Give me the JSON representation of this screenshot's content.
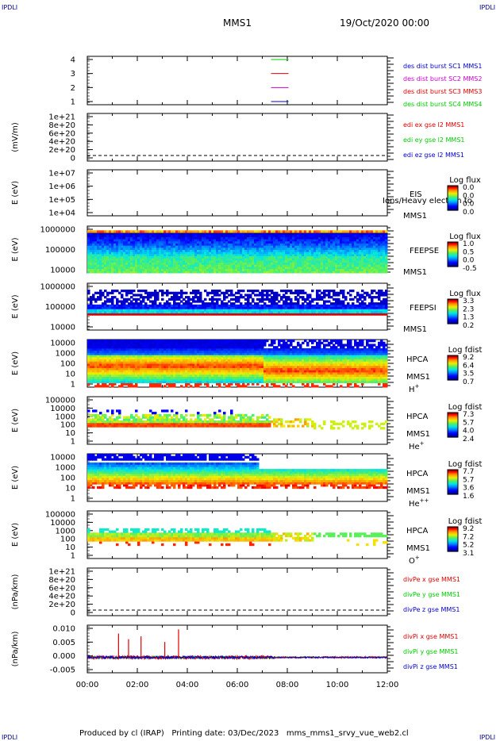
{
  "corners": {
    "tl": "IPDLI",
    "tr": "IPDLI",
    "bl": "IPDLI",
    "br": "IPDLI"
  },
  "header": {
    "spacecraft": "MMS1",
    "date": "19/Oct/2020 00:00"
  },
  "footer": {
    "produced_by": "Produced by cl (IRAP)",
    "printing_date": "Printing date: 03/Dec/2023",
    "script": "mms_mms1_srvy_vue_web2.cl"
  },
  "colors": {
    "red": "#e00000",
    "green": "#00cc00",
    "blue": "#0000cc",
    "magenta": "#cc00cc",
    "colorbar": [
      "#00007f",
      "#0000ff",
      "#007fff",
      "#00ffff",
      "#7fff7f",
      "#ffff00",
      "#ff7f00",
      "#ff0000",
      "#7f0000"
    ]
  },
  "chart_data": [
    {
      "type": "line",
      "id": "p1",
      "ylabel": "",
      "yticks": [
        "1",
        "2",
        "3",
        "4"
      ],
      "ylim": [
        0.5,
        4.5
      ],
      "legend": [
        {
          "text": "des dist burst SC1 MMS1",
          "color": "blue"
        },
        {
          "text": "des dist burst SC2 MMS2",
          "color": "magenta"
        },
        {
          "text": "des dist burst SC3 MMS3",
          "color": "red"
        },
        {
          "text": "des dist burst SC4 MMS4",
          "color": "green"
        }
      ],
      "series": [
        {
          "name": "SC1",
          "y": 1,
          "color": "blue",
          "x": [
            "07:00",
            "08:00"
          ]
        },
        {
          "name": "SC2",
          "y": 2,
          "color": "magenta",
          "x": [
            "07:00",
            "08:00"
          ]
        },
        {
          "name": "SC3",
          "y": 3,
          "color": "red",
          "x": [
            "07:00",
            "08:00"
          ]
        },
        {
          "name": "SC4",
          "y": 4,
          "color": "green",
          "x": [
            "07:00",
            "08:00"
          ]
        }
      ]
    },
    {
      "type": "line",
      "id": "p2",
      "ylabel": "(mV/m)",
      "yticks": [
        "0",
        "2e+20",
        "4e+20",
        "6e+20",
        "8e+20",
        "1e+21"
      ],
      "legend": [
        {
          "text": "edi ex gse l2 MMS1",
          "color": "red"
        },
        {
          "text": "edi ey gse l2 MMS1",
          "color": "green"
        },
        {
          "text": "edi ez gse l2 MMS1",
          "color": "blue"
        }
      ],
      "dashed_zero": true
    },
    {
      "type": "heatmap",
      "id": "p3",
      "ylabel": "E (eV)",
      "yticks": [
        "1e+04",
        "1e+05",
        "1e+06",
        "1e+07"
      ],
      "instrument": [
        "EIS",
        "MMS1"
      ],
      "overlay": "Ions/Heavy electron to",
      "cbar_title": "Log flux",
      "cbar_ticks": [
        "0.0",
        "0.0",
        "0.0",
        "0.0"
      ]
    },
    {
      "type": "heatmap",
      "id": "p4",
      "ylabel": "E (eV)",
      "yticks": [
        "10000",
        "100000",
        "1000000"
      ],
      "instrument": [
        "FEEPSE",
        "MMS1"
      ],
      "cbar_title": "Log flux",
      "cbar_ticks": [
        "1.0",
        "0.5",
        "0.0",
        "-0.5"
      ]
    },
    {
      "type": "heatmap",
      "id": "p5",
      "ylabel": "E (eV)",
      "yticks": [
        "10000",
        "100000",
        "1000000"
      ],
      "instrument": [
        "FEEPSI",
        "MMS1"
      ],
      "cbar_title": "Log flux",
      "cbar_ticks": [
        "3.3",
        "2.3",
        "1.3",
        "0.2"
      ]
    },
    {
      "type": "heatmap",
      "id": "p6",
      "ylabel": "E (eV)",
      "yticks": [
        "1",
        "10",
        "100",
        "1000",
        "10000"
      ],
      "instrument": [
        "HPCA",
        "MMS1"
      ],
      "species": "H",
      "charge": "+",
      "cbar_title": "Log fdist",
      "cbar_ticks": [
        "9.2",
        "6.4",
        "3.5",
        "0.7"
      ]
    },
    {
      "type": "heatmap",
      "id": "p7",
      "ylabel": "E (eV)",
      "yticks": [
        "1",
        "10",
        "100",
        "1000",
        "10000",
        "100000"
      ],
      "instrument": [
        "HPCA",
        "MMS1"
      ],
      "species": "He",
      "charge": "+",
      "cbar_title": "Log fdist",
      "cbar_ticks": [
        "7.3",
        "5.7",
        "4.0",
        "2.4"
      ]
    },
    {
      "type": "heatmap",
      "id": "p8",
      "ylabel": "E (eV)",
      "yticks": [
        "1",
        "10",
        "100",
        "1000",
        "10000"
      ],
      "instrument": [
        "HPCA",
        "MMS1"
      ],
      "species": "He",
      "charge": "++",
      "cbar_title": "Log fdist",
      "cbar_ticks": [
        "7.7",
        "5.7",
        "3.6",
        "1.6"
      ]
    },
    {
      "type": "heatmap",
      "id": "p9",
      "ylabel": "E (eV)",
      "yticks": [
        "1",
        "10",
        "100",
        "1000",
        "10000",
        "100000"
      ],
      "instrument": [
        "HPCA",
        "MMS1"
      ],
      "species": "O",
      "charge": "+",
      "cbar_title": "Log fdist",
      "cbar_ticks": [
        "9.2",
        "7.2",
        "5.2",
        "3.1"
      ]
    },
    {
      "type": "line",
      "id": "p10",
      "ylabel": "(nPa/km)",
      "yticks": [
        "0",
        "2e+20",
        "4e+20",
        "6e+20",
        "8e+20",
        "1e+21"
      ],
      "legend": [
        {
          "text": "divPe x gse MMS1",
          "color": "red"
        },
        {
          "text": "divPe y gse MMS1",
          "color": "green"
        },
        {
          "text": "divPe z gse MMS1",
          "color": "blue"
        }
      ],
      "dashed_zero": true
    },
    {
      "type": "line",
      "id": "p11",
      "ylabel": "(nPa/km)",
      "yticks": [
        "-0.005",
        "0.000",
        "0.005",
        "0.010"
      ],
      "ylim": [
        -0.0055,
        0.0115
      ],
      "legend": [
        {
          "text": "divPi x gse MMS1",
          "color": "red"
        },
        {
          "text": "divPi y gse MMS1",
          "color": "green"
        },
        {
          "text": "divPi z gse MMS1",
          "color": "blue"
        }
      ],
      "spikes_x": [
        {
          "t": 1.25,
          "v": 0.0085
        },
        {
          "t": 1.65,
          "v": 0.0065
        },
        {
          "t": 2.15,
          "v": 0.0075
        },
        {
          "t": 3.1,
          "v": 0.0055
        },
        {
          "t": 3.65,
          "v": 0.01
        }
      ]
    }
  ],
  "xaxis": {
    "ticks": [
      "00:00",
      "02:00",
      "04:00",
      "06:00",
      "08:00",
      "10:00",
      "12:00"
    ],
    "range_hours": [
      0,
      12
    ]
  }
}
